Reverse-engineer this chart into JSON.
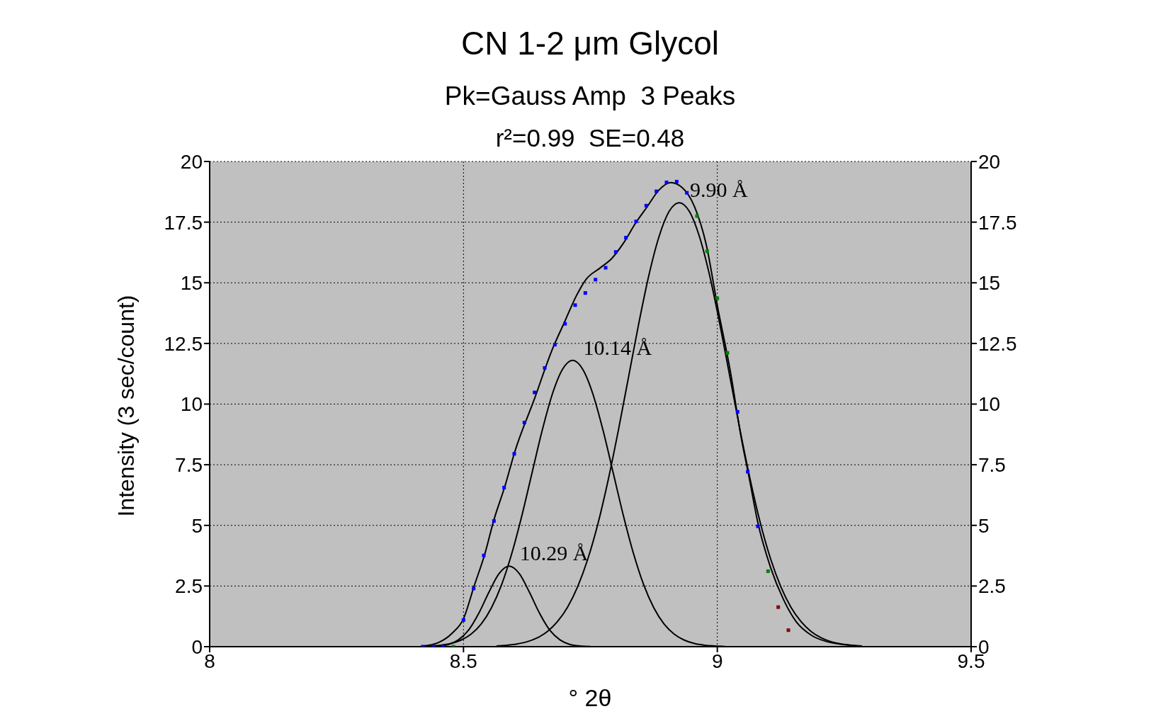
{
  "chart_data": {
    "type": "scatter",
    "title": "CN 1-2 μm Glycol",
    "subtitle": "Pk=Gauss Amp  3 Peaks",
    "xlabel": "° 2θ",
    "ylabel": "Intensity (3 sec/count)",
    "annotations": [
      "r²=0.99  SE=0.48",
      {
        "text": "10.29 Å",
        "x": 8.59,
        "y": 3.32
      },
      {
        "text": "10.14 Å",
        "x": 8.715,
        "y": 11.8
      },
      {
        "text": "9.90 Å",
        "x": 8.925,
        "y": 18.3
      }
    ],
    "xlim": [
      8,
      9.5
    ],
    "xticks": [
      8,
      8.5,
      9,
      9.5
    ],
    "ylim": [
      0,
      20
    ],
    "yticks": [
      0,
      2.5,
      5,
      7.5,
      10,
      12.5,
      15,
      17.5,
      20
    ],
    "y2lim": [
      0,
      20
    ],
    "y2ticks": [
      0,
      2.5,
      5,
      7.5,
      10,
      12.5,
      15,
      17.5,
      20
    ],
    "grid": true,
    "series": [
      {
        "marker": "square",
        "x": [
          8.42,
          8.44,
          8.46,
          8.48,
          8.5,
          8.52,
          8.54,
          8.56,
          8.58,
          8.6,
          8.62,
          8.64,
          8.66,
          8.68,
          8.7,
          8.72,
          8.74,
          8.76,
          8.78,
          8.8,
          8.82,
          8.84,
          8.86,
          8.88,
          8.9,
          8.92,
          8.94,
          8.96,
          8.98,
          9.0,
          9.02,
          9.04,
          9.06,
          9.08,
          9.1,
          9.12,
          9.14
        ],
        "values": [
          0,
          0,
          0,
          0,
          1.1,
          2.4,
          3.76,
          5.18,
          6.56,
          7.95,
          9.24,
          10.48,
          11.49,
          12.45,
          13.31,
          14.08,
          14.58,
          15.13,
          15.62,
          16.27,
          16.86,
          17.53,
          18.18,
          18.77,
          19.14,
          19.17,
          18.71,
          17.75,
          16.3,
          14.36,
          12.11,
          9.68,
          7.21,
          4.96,
          3.11,
          1.63,
          0.68
        ],
        "colors": [
          "#0000ff",
          "#0000ff",
          "#0000ff",
          "#008000",
          "#0000ff",
          "#0000ff",
          "#0000ff",
          "#0000ff",
          "#0000ff",
          "#0000ff",
          "#0000ff",
          "#0000ff",
          "#0000ff",
          "#0000ff",
          "#0000ff",
          "#0000ff",
          "#0000ff",
          "#0000ff",
          "#0000ff",
          "#0000ff",
          "#0000ff",
          "#0000ff",
          "#0000ff",
          "#0000ff",
          "#0000ff",
          "#0000ff",
          "#0000ff",
          "#008000",
          "#008000",
          "#008000",
          "#008000",
          "#0000ff",
          "#0000ff",
          "#0000ff",
          "#008000",
          "#8b0000",
          "#8b0000"
        ]
      },
      {
        "type": "line",
        "color": "#000000",
        "marker": "none",
        "x": [
          8.43,
          8.45,
          8.47,
          8.49,
          8.51,
          8.53,
          8.55,
          8.57,
          8.59,
          8.61,
          8.63,
          8.65,
          8.67,
          8.69,
          8.71,
          8.73,
          8.75
        ],
        "values": [
          0.01,
          0.03,
          0.09,
          0.28,
          0.68,
          1.37,
          2.24,
          3.01,
          3.32,
          3.01,
          2.24,
          1.37,
          0.68,
          0.28,
          0.09,
          0.03,
          0.01
        ]
      },
      {
        "type": "line",
        "color": "#000000",
        "marker": "none",
        "x": [
          8.415,
          8.435,
          8.455,
          8.475,
          8.495,
          8.515,
          8.535,
          8.555,
          8.575,
          8.595,
          8.615,
          8.635,
          8.655,
          8.675,
          8.695,
          8.715,
          8.735,
          8.755,
          8.775,
          8.795,
          8.815,
          8.835,
          8.855,
          8.875,
          8.895,
          8.915,
          8.935,
          8.955,
          8.975,
          8.995,
          9.015
        ],
        "values": [
          0.01,
          0.03,
          0.06,
          0.13,
          0.27,
          0.52,
          0.94,
          1.6,
          2.55,
          3.83,
          5.4,
          7.16,
          8.91,
          10.41,
          11.43,
          11.8,
          11.43,
          10.41,
          8.91,
          7.16,
          5.4,
          3.83,
          2.55,
          1.6,
          0.94,
          0.52,
          0.27,
          0.13,
          0.06,
          0.03,
          0.01
        ]
      },
      {
        "type": "line",
        "color": "#000000",
        "marker": "none",
        "x": [
          8.565,
          8.585,
          8.605,
          8.625,
          8.645,
          8.665,
          8.685,
          8.705,
          8.725,
          8.745,
          8.765,
          8.785,
          8.805,
          8.825,
          8.845,
          8.865,
          8.885,
          8.905,
          8.925,
          8.945,
          8.965,
          8.985,
          9.005,
          9.025,
          9.045,
          9.065,
          9.085,
          9.105,
          9.125,
          9.145,
          9.165,
          9.185,
          9.205,
          9.225,
          9.245,
          9.265,
          9.285
        ],
        "values": [
          0.03,
          0.06,
          0.11,
          0.2,
          0.36,
          0.62,
          1.03,
          1.63,
          2.48,
          3.62,
          5.08,
          6.87,
          8.91,
          11.1,
          13.29,
          15.29,
          16.89,
          17.94,
          18.3,
          17.94,
          16.89,
          15.29,
          13.29,
          11.1,
          8.91,
          6.87,
          5.08,
          3.62,
          2.48,
          1.63,
          1.03,
          0.62,
          0.36,
          0.2,
          0.11,
          0.06,
          0.03
        ]
      },
      {
        "type": "line",
        "color": "#000000",
        "marker": "none",
        "x": [
          8.419,
          8.451,
          8.478,
          8.5,
          8.521,
          8.542,
          8.56,
          8.582,
          8.601,
          8.639,
          8.676,
          8.699,
          8.722,
          8.741,
          8.769,
          8.792,
          8.815,
          8.839,
          8.862,
          8.885,
          8.908,
          8.931,
          8.955,
          8.978,
          9.001,
          9.025,
          9.048,
          9.062,
          9.08,
          9.105,
          9.13,
          9.155,
          9.186,
          9.217,
          9.254,
          9.28
        ],
        "values": [
          0.02,
          0.17,
          0.56,
          1.15,
          2.5,
          3.82,
          5.23,
          6.64,
          8.03,
          10.17,
          12.31,
          13.38,
          14.45,
          15.13,
          15.61,
          16.0,
          16.63,
          17.46,
          18.14,
          18.82,
          19.13,
          18.92,
          18.14,
          16.59,
          13.96,
          11.43,
          8.51,
          7.05,
          5.1,
          3.26,
          1.96,
          1.04,
          0.46,
          0.2,
          0.07,
          0.02
        ]
      }
    ]
  }
}
